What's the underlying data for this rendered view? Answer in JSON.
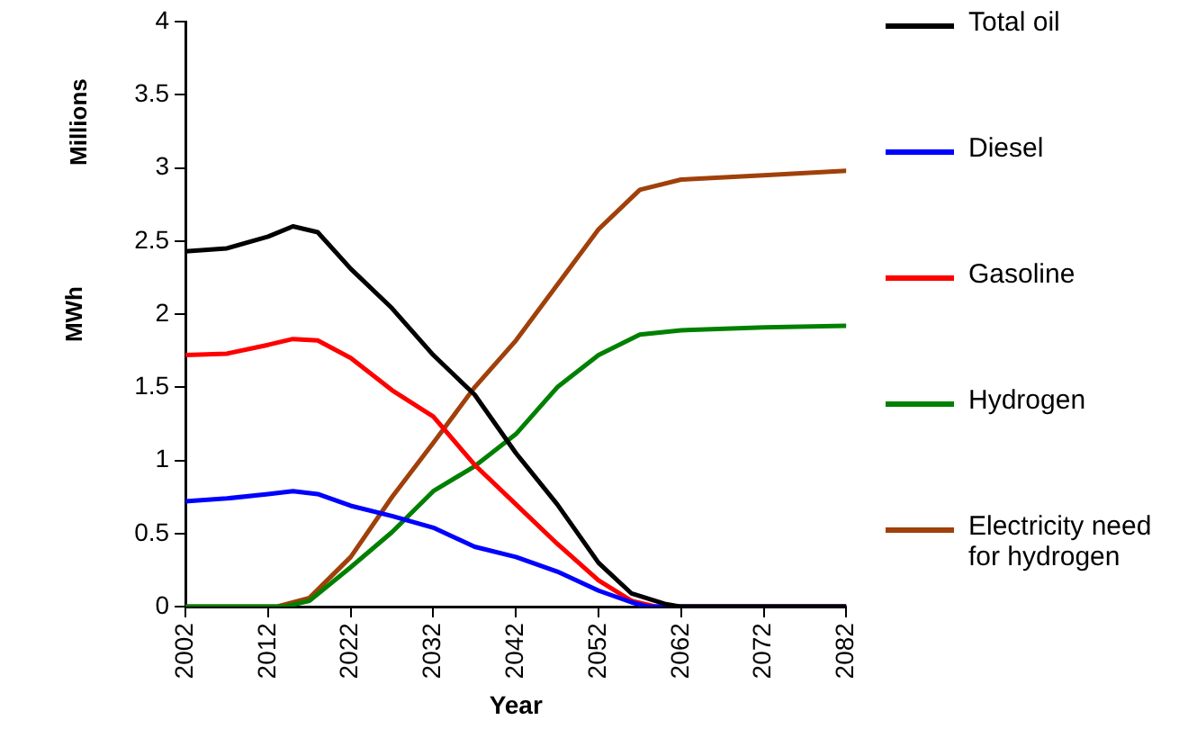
{
  "chart_data": {
    "type": "line",
    "xlabel": "Year",
    "ylabel": "MWh",
    "annotations": [
      "Millions"
    ],
    "xlim": [
      2002,
      2082
    ],
    "xticks": [
      2002,
      2012,
      2022,
      2032,
      2042,
      2052,
      2062,
      2072,
      2082
    ],
    "ylim": [
      0,
      4
    ],
    "yticks": [
      0,
      0.5,
      1,
      1.5,
      2,
      2.5,
      3,
      3.5,
      4
    ],
    "grid": false,
    "legend": "right",
    "marker": "none",
    "line_style": "solid",
    "series": [
      {
        "name": "Total oil",
        "color": "#000000",
        "x": [
          2002,
          2007,
          2012,
          2015,
          2018,
          2022,
          2027,
          2032,
          2037,
          2042,
          2047,
          2052,
          2056,
          2060,
          2062,
          2082
        ],
        "values": [
          2.43,
          2.45,
          2.53,
          2.6,
          2.56,
          2.31,
          2.04,
          1.72,
          1.45,
          1.05,
          0.7,
          0.3,
          0.09,
          0.02,
          0,
          0
        ]
      },
      {
        "name": "Diesel",
        "color": "#0000ff",
        "x": [
          2002,
          2007,
          2012,
          2015,
          2018,
          2022,
          2027,
          2032,
          2037,
          2042,
          2047,
          2052,
          2056,
          2058,
          2082
        ],
        "values": [
          0.72,
          0.74,
          0.77,
          0.79,
          0.77,
          0.69,
          0.62,
          0.54,
          0.41,
          0.34,
          0.24,
          0.11,
          0.03,
          0,
          0
        ]
      },
      {
        "name": "Gasoline",
        "color": "#ff0000",
        "x": [
          2002,
          2007,
          2012,
          2015,
          2018,
          2022,
          2027,
          2032,
          2037,
          2042,
          2047,
          2052,
          2056,
          2059,
          2082
        ],
        "values": [
          1.72,
          1.73,
          1.79,
          1.83,
          1.82,
          1.7,
          1.48,
          1.3,
          0.97,
          0.7,
          0.43,
          0.18,
          0.04,
          0,
          0
        ]
      },
      {
        "name": "Hydrogen",
        "color": "#008000",
        "x": [
          2002,
          2014,
          2017,
          2022,
          2027,
          2032,
          2037,
          2042,
          2047,
          2052,
          2057,
          2062,
          2072,
          2082
        ],
        "values": [
          0,
          0,
          0.04,
          0.27,
          0.51,
          0.79,
          0.96,
          1.18,
          1.5,
          1.72,
          1.86,
          1.89,
          1.91,
          1.92
        ]
      },
      {
        "name": "Electricity need for hydrogen",
        "color": "#a0400a",
        "x": [
          2002,
          2013,
          2017,
          2022,
          2027,
          2032,
          2037,
          2042,
          2047,
          2052,
          2057,
          2062,
          2072,
          2082
        ],
        "values": [
          0,
          0,
          0.06,
          0.34,
          0.75,
          1.12,
          1.5,
          1.82,
          2.2,
          2.58,
          2.85,
          2.92,
          2.95,
          2.98
        ]
      }
    ]
  }
}
